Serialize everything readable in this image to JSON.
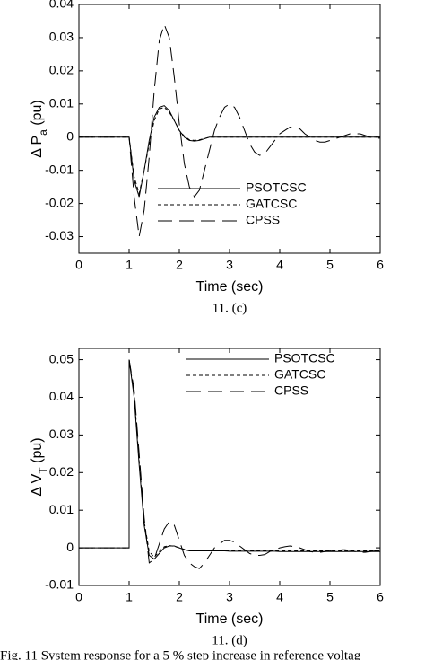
{
  "chart_data": [
    {
      "type": "line",
      "ylabel": [
        "Δ  P",
        "a",
        " (pu)"
      ],
      "xlabel": "Time (sec)",
      "caption": "11. (c)",
      "xlim": [
        0,
        6
      ],
      "xticks": [
        0,
        1,
        2,
        3,
        4,
        5,
        6
      ],
      "ylim": [
        -0.035,
        0.04
      ],
      "yticks": [
        -0.03,
        -0.02,
        -0.01,
        0,
        0.01,
        0.02,
        0.03,
        0.04
      ],
      "grid": false,
      "legend": "lower center",
      "x": [
        0,
        1,
        1.1,
        1.2,
        1.3,
        1.4,
        1.5,
        1.6,
        1.7,
        1.8,
        1.9,
        2,
        2.1,
        2.2,
        2.3,
        2.4,
        2.5,
        2.6,
        2.7,
        2.8,
        2.9,
        3,
        3.1,
        3.2,
        3.3,
        3.4,
        3.5,
        3.6,
        3.7,
        3.8,
        3.9,
        4,
        4.1,
        4.2,
        4.3,
        4.4,
        4.5,
        4.6,
        4.7,
        4.8,
        4.9,
        5,
        5.1,
        5.2,
        5.3,
        5.4,
        5.5,
        5.6,
        5.7,
        5.8,
        5.9,
        6
      ],
      "series": [
        {
          "name": "PSOTCSC",
          "color": "#000000",
          "style": "solid",
          "values": [
            0,
            0,
            -0.013,
            -0.018,
            -0.01,
            -0.001,
            0.006,
            0.009,
            0.0095,
            0.008,
            0.005,
            0.002,
            0,
            -0.001,
            -0.0012,
            -0.001,
            -0.0005,
            0,
            0,
            0,
            0,
            0,
            0,
            0,
            0,
            0,
            0,
            0,
            0,
            0,
            0,
            0,
            0,
            0,
            0,
            0,
            0,
            0,
            0,
            0,
            0,
            0,
            0,
            0,
            0,
            0,
            0,
            0,
            0,
            0,
            0,
            0
          ]
        },
        {
          "name": "GATCSC",
          "color": "#000000",
          "style": "dashed",
          "values": [
            0,
            0,
            -0.012,
            -0.017,
            -0.01,
            -0.002,
            0.005,
            0.0085,
            0.009,
            0.0075,
            0.005,
            0.002,
            0.0003,
            -0.0008,
            -0.001,
            -0.0008,
            -0.0004,
            0,
            0,
            0,
            0,
            0,
            0,
            0,
            0,
            0,
            0,
            0,
            0,
            0,
            0,
            0,
            0,
            0,
            0,
            0,
            0,
            0,
            0,
            0,
            0,
            0,
            0,
            0,
            0,
            0,
            0,
            0,
            0,
            0,
            0,
            0
          ]
        },
        {
          "name": "CPSS",
          "color": "#000000",
          "style": "long-dashed",
          "values": [
            0,
            0,
            -0.018,
            -0.03,
            -0.022,
            -0.006,
            0.014,
            0.029,
            0.034,
            0.03,
            0.018,
            0.004,
            -0.008,
            -0.015,
            -0.018,
            -0.016,
            -0.01,
            -0.004,
            0.002,
            0.006,
            0.009,
            0.01,
            0.009,
            0.006,
            0.002,
            -0.002,
            -0.0045,
            -0.0055,
            -0.005,
            -0.003,
            -0.001,
            0.001,
            0.002,
            0.003,
            0.003,
            0.0025,
            0.001,
            0,
            -0.001,
            -0.0015,
            -0.0015,
            -0.001,
            -0.0005,
            0,
            0.0005,
            0.001,
            0.001,
            0.001,
            0.0005,
            0,
            -0.0003,
            -0.0003
          ]
        }
      ]
    },
    {
      "type": "line",
      "ylabel": [
        "Δ  V",
        "T",
        " (pu)"
      ],
      "xlabel": "Time (sec)",
      "caption": "11. (d)",
      "xlim": [
        0,
        6
      ],
      "xticks": [
        0,
        1,
        2,
        3,
        4,
        5,
        6
      ],
      "ylim": [
        -0.01,
        0.053
      ],
      "yticks": [
        -0.01,
        0,
        0.01,
        0.02,
        0.03,
        0.04,
        0.05
      ],
      "grid": false,
      "legend": "upper right",
      "x": [
        0,
        1,
        1,
        1.1,
        1.2,
        1.3,
        1.4,
        1.5,
        1.6,
        1.7,
        1.8,
        1.9,
        2,
        2.1,
        2.2,
        2.3,
        2.4,
        2.5,
        2.6,
        2.7,
        2.8,
        2.9,
        3,
        3.1,
        3.2,
        3.3,
        3.4,
        3.5,
        3.6,
        3.7,
        3.8,
        3.9,
        4,
        4.1,
        4.2,
        4.3,
        4.4,
        4.5,
        4.6,
        4.7,
        4.8,
        4.9,
        5,
        5.1,
        5.2,
        5.3,
        5.4,
        5.5,
        5.6,
        5.7,
        5.8,
        5.9,
        6
      ],
      "series": [
        {
          "name": "PSOTCSC",
          "color": "#000000",
          "style": "solid",
          "values": [
            0,
            0,
            0.05,
            0.04,
            0.022,
            0.006,
            -0.002,
            -0.003,
            -0.0015,
            0,
            0.0005,
            0.0005,
            0,
            -0.0005,
            -0.0008,
            -0.0008,
            -0.0008,
            -0.0008,
            -0.0008,
            -0.0008,
            -0.0008,
            -0.0008,
            -0.0009,
            -0.0009,
            -0.0009,
            -0.0009,
            -0.0009,
            -0.0009,
            -0.0009,
            -0.0009,
            -0.0009,
            -0.0009,
            -0.001,
            -0.001,
            -0.001,
            -0.001,
            -0.001,
            -0.001,
            -0.001,
            -0.001,
            -0.001,
            -0.001,
            -0.001,
            -0.001,
            -0.001,
            -0.001,
            -0.001,
            -0.001,
            -0.001,
            -0.001,
            -0.001,
            -0.001,
            -0.001
          ]
        },
        {
          "name": "GATCSC",
          "color": "#000000",
          "style": "dashed",
          "values": [
            0,
            0,
            0.05,
            0.041,
            0.023,
            0.007,
            -0.001,
            -0.0025,
            -0.001,
            0.0003,
            0.0006,
            0.0004,
            0,
            -0.0004,
            -0.0007,
            -0.0008,
            -0.0008,
            -0.0008,
            -0.0008,
            -0.0008,
            -0.0008,
            -0.0008,
            -0.0008,
            -0.0008,
            -0.0008,
            -0.0008,
            -0.0008,
            -0.0008,
            -0.0008,
            -0.0008,
            -0.0008,
            -0.0008,
            -0.0008,
            -0.0008,
            -0.0008,
            -0.0008,
            -0.0008,
            -0.0008,
            -0.0008,
            -0.0008,
            -0.0008,
            -0.0008,
            -0.0008,
            -0.0008,
            -0.0008,
            -0.0008,
            -0.0008,
            -0.0008,
            -0.0008,
            -0.0008,
            -0.0008,
            -0.0008,
            -0.0008
          ]
        },
        {
          "name": "CPSS",
          "color": "#000000",
          "style": "long-dashed",
          "values": [
            0,
            0,
            0.05,
            0.042,
            0.025,
            0.008,
            -0.004,
            -0.003,
            0.001,
            0.005,
            0.007,
            0.006,
            0.002,
            -0.002,
            -0.004,
            -0.005,
            -0.0055,
            -0.004,
            -0.002,
            0,
            0.001,
            0.002,
            0.002,
            0.0015,
            0.0005,
            -0.0005,
            -0.0015,
            -0.002,
            -0.002,
            -0.0018,
            -0.001,
            -0.0005,
            0,
            0.0003,
            0.0005,
            0.0003,
            0,
            -0.0005,
            -0.001,
            -0.0012,
            -0.0012,
            -0.001,
            -0.0008,
            -0.0005,
            -0.0005,
            -0.0005,
            -0.0007,
            -0.001,
            -0.0012,
            -0.0012,
            -0.001,
            -0.0008,
            -0.0008
          ]
        }
      ]
    }
  ],
  "figure_caption": "Fig. 11 System response for a 5 % step increase in reference voltag"
}
